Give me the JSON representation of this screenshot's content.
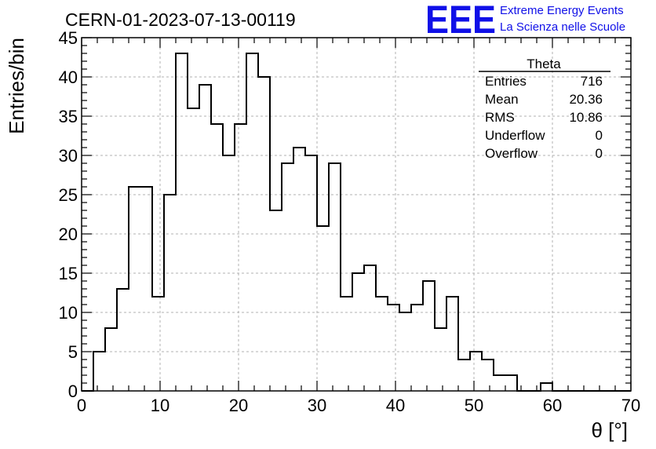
{
  "title": "CERN-01-2023-07-13-00119",
  "logo": {
    "mark": "EEE",
    "line1": "Extreme Energy Events",
    "line2": "La Scienza nelle Scuole",
    "color": "#1010e8"
  },
  "stats": {
    "name": "Theta",
    "rows": [
      {
        "label": "Entries",
        "value": "716"
      },
      {
        "label": "Mean",
        "value": "20.36"
      },
      {
        "label": "RMS",
        "value": "10.86"
      },
      {
        "label": "Underflow",
        "value": "0"
      },
      {
        "label": "Overflow",
        "value": "0"
      }
    ]
  },
  "chart_data": {
    "type": "histogram",
    "xlabel": "θ [°]",
    "ylabel": "Entries/bin",
    "xlim": [
      0,
      70
    ],
    "ylim": [
      0,
      45
    ],
    "bin_width": 1.5,
    "bin_start": 0,
    "xticks": [
      0,
      10,
      20,
      30,
      40,
      50,
      60,
      70
    ],
    "yticks": [
      0,
      5,
      10,
      15,
      20,
      25,
      30,
      35,
      40,
      45
    ],
    "grid": true,
    "values": [
      0,
      5,
      8,
      13,
      26,
      26,
      12,
      25,
      43,
      36,
      39,
      34,
      30,
      34,
      43,
      40,
      23,
      29,
      31,
      30,
      21,
      29,
      12,
      15,
      16,
      12,
      11,
      10,
      11,
      14,
      8,
      12,
      4,
      5,
      4,
      2,
      2,
      0,
      0,
      1,
      0,
      0,
      0,
      0,
      0,
      0,
      0
    ]
  }
}
